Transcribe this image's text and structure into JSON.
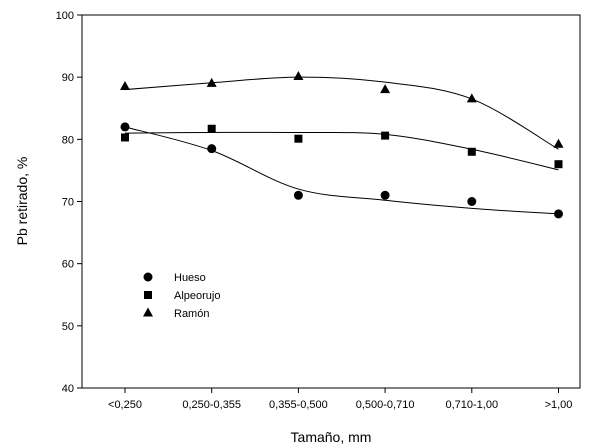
{
  "chart_data": {
    "type": "scatter",
    "title": "",
    "xlabel": "Tamaño, mm",
    "ylabel": "Pb retirado, %",
    "categories": [
      "<0,250",
      "0,250-0,355",
      "0,355-0,500",
      "0,500-0,710",
      "0,710-1,00",
      ">1,00"
    ],
    "ylim": [
      40,
      100
    ],
    "yticks": [
      40,
      50,
      60,
      70,
      80,
      90,
      100
    ],
    "grid": false,
    "legend_position": "lower-left",
    "series": [
      {
        "name": "Hueso",
        "marker": "circle",
        "values": [
          82.0,
          78.5,
          71.0,
          71.0,
          70.0,
          68.0
        ],
        "fit": [
          82.0,
          78.2,
          72.0,
          70.2,
          68.9,
          68.0
        ]
      },
      {
        "name": "Alpeorujo",
        "marker": "square",
        "values": [
          80.3,
          81.7,
          80.1,
          80.6,
          78.0,
          76.0
        ],
        "fit": [
          81.0,
          81.1,
          81.1,
          80.8,
          78.4,
          75.1
        ]
      },
      {
        "name": "Ramón",
        "marker": "triangle",
        "values": [
          88.5,
          89.0,
          90.1,
          88.0,
          86.5,
          79.2
        ],
        "fit": [
          88.0,
          89.1,
          90.0,
          89.2,
          86.5,
          78.4
        ]
      }
    ]
  }
}
